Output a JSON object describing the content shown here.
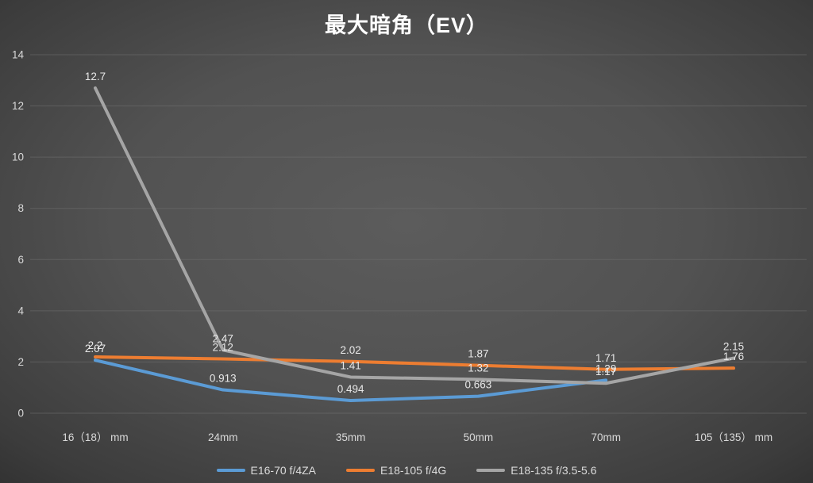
{
  "title": "最大暗角（EV）",
  "colors": {
    "background_center": "#5c5c5c",
    "background_edge": "#2b2b2b",
    "gridline": "#707070",
    "axis_text": "#d9d9d9",
    "data_label_text": "#e8e8e8",
    "title_text": "#ffffff"
  },
  "chart_data": {
    "type": "line",
    "title": "最大暗角（EV）",
    "xlabel": "",
    "ylabel": "",
    "categories": [
      "16（18） mm",
      "24mm",
      "35mm",
      "50mm",
      "70mm",
      "105（135） mm"
    ],
    "series": [
      {
        "name": "E16-70 f/4ZA",
        "color": "#5B9BD5",
        "values": [
          2.07,
          0.913,
          0.494,
          0.663,
          1.29,
          null
        ],
        "labels": [
          "2.07",
          "0.913",
          "0.494",
          "0.663",
          "1.29",
          ""
        ]
      },
      {
        "name": "E18-105 f/4G",
        "color": "#ED7D31",
        "values": [
          2.2,
          2.12,
          2.02,
          1.87,
          1.71,
          1.76
        ],
        "labels": [
          "2.2",
          "2.12",
          "2.02",
          "1.87",
          "1.71",
          "1.76"
        ]
      },
      {
        "name": "E18-135 f/3.5-5.6",
        "color": "#A5A5A5",
        "values": [
          12.7,
          2.47,
          1.41,
          1.32,
          1.17,
          2.15
        ],
        "labels": [
          "12.7",
          "2.47",
          "1.41",
          "1.32",
          "1.17",
          "2.15"
        ]
      }
    ],
    "ylim": [
      0,
      14
    ],
    "ytick_step": 2,
    "yticks": [
      "0",
      "2",
      "4",
      "6",
      "8",
      "10",
      "12",
      "14"
    ],
    "grid": true,
    "legend_position": "bottom"
  }
}
